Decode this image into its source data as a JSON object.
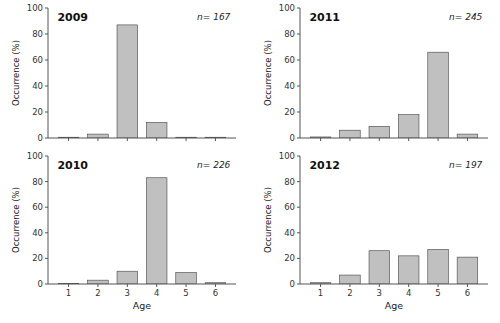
{
  "chart_data": [
    {
      "type": "bar",
      "title": "2009",
      "annotations": [
        {
          "text": "n= 167"
        }
      ],
      "x": [
        1,
        2,
        3,
        4,
        5,
        6
      ],
      "values": [
        0.6,
        3.0,
        87.0,
        12.0,
        0.6,
        0.6
      ],
      "color": "#c0c0c0",
      "xlim": [
        0.3,
        6.7
      ],
      "xticks": [
        1,
        2,
        3,
        4,
        5,
        6
      ],
      "ylim": [
        0,
        100
      ],
      "yticks": [
        0,
        20,
        40,
        60,
        80,
        100
      ],
      "y_label": "Occurrence (%)",
      "grid": false,
      "tick_labels": "y"
    },
    {
      "type": "bar",
      "title": "2011",
      "annotations": [
        {
          "text": "n= 245"
        }
      ],
      "x": [
        1,
        2,
        3,
        4,
        5,
        6
      ],
      "values": [
        0.8,
        6.0,
        9.0,
        18.0,
        66.0,
        3.0
      ],
      "color": "#c0c0c0",
      "xlim": [
        0.3,
        6.7
      ],
      "xticks": [
        1,
        2,
        3,
        4,
        5,
        6
      ],
      "ylim": [
        0,
        100
      ],
      "yticks": [
        0,
        20,
        40,
        60,
        80,
        100
      ],
      "y_label": "Occurrence (%)",
      "grid": false,
      "tick_labels": "y"
    },
    {
      "type": "bar",
      "title": "2010",
      "annotations": [
        {
          "text": "n= 226"
        }
      ],
      "x": [
        1,
        2,
        3,
        4,
        5,
        6
      ],
      "values": [
        0.4,
        3.0,
        10.0,
        83.0,
        9.0,
        1.0
      ],
      "color": "#c0c0c0",
      "xlim": [
        0.3,
        6.7
      ],
      "xticks": [
        1,
        2,
        3,
        4,
        5,
        6
      ],
      "ylim": [
        0,
        100
      ],
      "yticks": [
        0,
        20,
        40,
        60,
        80,
        100
      ],
      "y_label": "Occurrence (%)",
      "x_label": "Age",
      "grid": false
    },
    {
      "type": "bar",
      "title": "2012",
      "annotations": [
        {
          "text": "n= 197"
        }
      ],
      "x": [
        1,
        2,
        3,
        4,
        5,
        6
      ],
      "values": [
        1.0,
        7.0,
        26.0,
        22.0,
        27.0,
        21.0
      ],
      "color": "#c0c0c0",
      "xlim": [
        0.3,
        6.7
      ],
      "xticks": [
        1,
        2,
        3,
        4,
        5,
        6
      ],
      "ylim": [
        0,
        100
      ],
      "yticks": [
        0,
        20,
        40,
        60,
        80,
        100
      ],
      "y_label": "Occurrence (%)",
      "x_label": "Age",
      "grid": false
    }
  ]
}
